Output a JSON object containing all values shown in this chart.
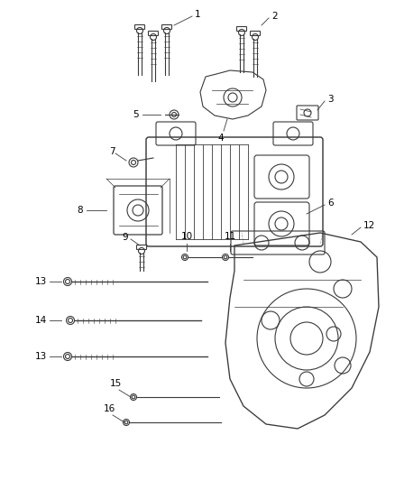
{
  "background_color": "#ffffff",
  "line_color": "#3a3a3a",
  "label_color": "#000000",
  "fig_width": 4.38,
  "fig_height": 5.33,
  "dpi": 100,
  "label_fontsize": 7.5
}
